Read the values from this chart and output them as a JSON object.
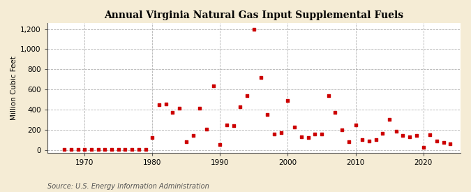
{
  "title": "Annual Virginia Natural Gas Input Supplemental Fuels",
  "ylabel": "Million Cubic Feet",
  "source": "Source: U.S. Energy Information Administration",
  "fig_background_color": "#f5ecd5",
  "plot_background_color": "#ffffff",
  "marker_color": "#cc0000",
  "xlim": [
    1964.5,
    2025.5
  ],
  "ylim": [
    -30,
    1260
  ],
  "yticks": [
    0,
    200,
    400,
    600,
    800,
    1000,
    1200
  ],
  "xticks": [
    1970,
    1980,
    1990,
    2000,
    2010,
    2020
  ],
  "years": [
    1967,
    1968,
    1969,
    1970,
    1971,
    1972,
    1973,
    1974,
    1975,
    1976,
    1977,
    1978,
    1979,
    1980,
    1981,
    1982,
    1983,
    1984,
    1985,
    1986,
    1987,
    1988,
    1989,
    1990,
    1991,
    1992,
    1993,
    1994,
    1995,
    1996,
    1997,
    1998,
    1999,
    2000,
    2001,
    2002,
    2003,
    2004,
    2005,
    2006,
    2007,
    2008,
    2009,
    2010,
    2011,
    2012,
    2013,
    2014,
    2015,
    2016,
    2017,
    2018,
    2019,
    2020,
    2021,
    2022,
    2023,
    2024
  ],
  "values": [
    2,
    2,
    2,
    2,
    2,
    2,
    2,
    2,
    2,
    2,
    2,
    2,
    2,
    120,
    450,
    455,
    375,
    415,
    80,
    145,
    415,
    205,
    635,
    55,
    245,
    240,
    430,
    540,
    1195,
    720,
    350,
    155,
    170,
    490,
    225,
    130,
    125,
    155,
    160,
    535,
    375,
    200,
    80,
    250,
    100,
    90,
    100,
    165,
    300,
    185,
    145,
    130,
    140,
    25,
    150,
    90,
    75,
    60
  ]
}
